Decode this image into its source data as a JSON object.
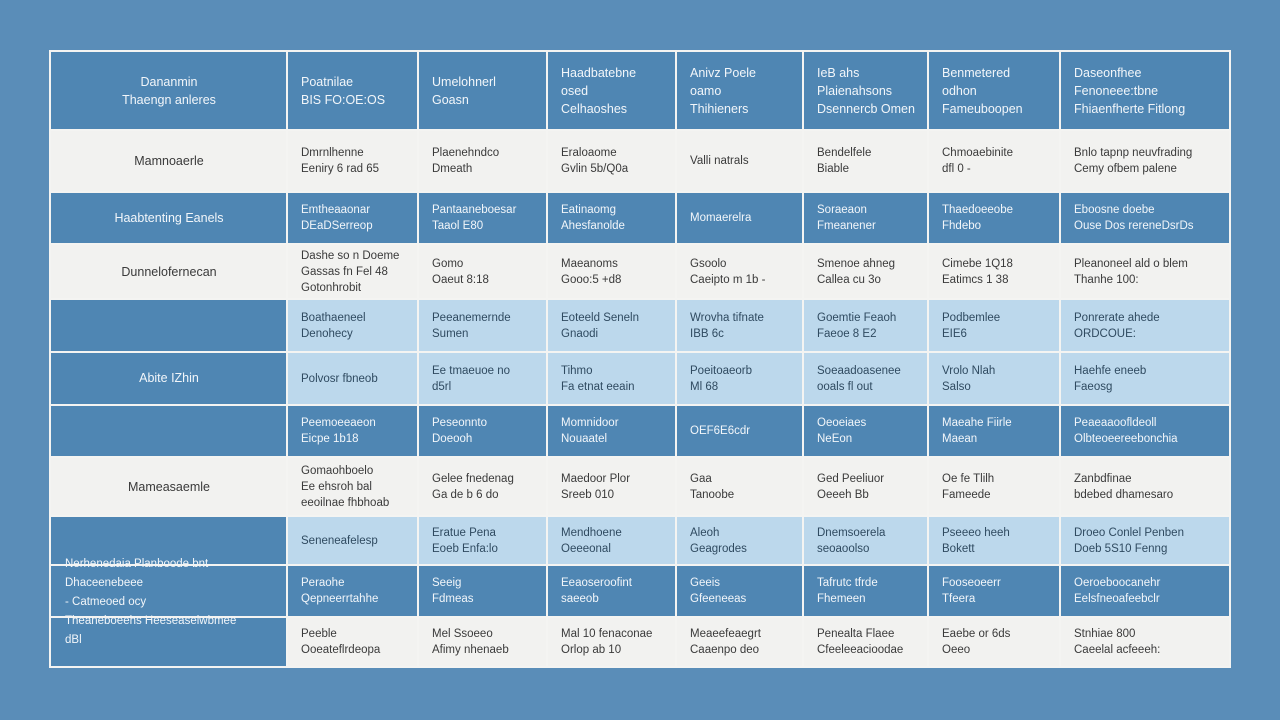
{
  "header": {
    "corner": [
      "Dananmin",
      "Thaengn anleres"
    ],
    "columns": [
      [
        "Poatnilae",
        "BIS FO:OE:OS"
      ],
      [
        "Umelohnerl",
        "Goasn"
      ],
      [
        "Haadbatebne",
        "osed",
        "Celhaoshes"
      ],
      [
        "Anivz Poele",
        "oamo",
        "Thihieners"
      ],
      [
        "IeB ahs",
        "Plaienahsons",
        "Dsennercb Omen"
      ],
      [
        "Benmetered",
        "odhon",
        "Fameuboopen"
      ],
      [
        "Daseonfhee",
        "Fenoneee:tbne",
        "Fhiaenfherte Fitlong"
      ]
    ]
  },
  "rows": {
    "r1": {
      "label": "Mamnoaerle",
      "cells": [
        [
          "Dmrnlhenne",
          "Eeniry 6 rad 65"
        ],
        [
          "Plaenehndco",
          "Dmeath"
        ],
        [
          "Eraloaome",
          "Gvlin 5b/Q0a"
        ],
        [
          "Valli natrals"
        ],
        [
          "Bendelfele",
          "Biable"
        ],
        [
          "Chmoaebinite",
          "dfl 0 -"
        ],
        [
          "Bnlo tapnp neuvfrading",
          "Cemy ofbem palene"
        ]
      ]
    },
    "r2": {
      "label": "Haabtenting Eanels",
      "cells": [
        [
          "Emtheaaonar",
          "DEaDSerreop"
        ],
        [
          "Pantaaneboesar",
          "Taaol E80"
        ],
        [
          "Eatinaomg",
          "Ahesfanolde"
        ],
        [
          "Momaerelra"
        ],
        [
          "Soraeaon",
          "Fmeanener"
        ],
        [
          "Thaedoeeobe",
          "Fhdebo"
        ],
        [
          "Eboosne doebe",
          "Ouse Dos rereneDsrDs"
        ]
      ]
    },
    "r3": {
      "label": "Dunnelofernecan",
      "cells": [
        [
          "Dashe so n Doeme",
          "Gassas fn Fel 48",
          "Gotonhrobit"
        ],
        [
          "Gomo",
          "Oaeut 8:18"
        ],
        [
          "Maeanoms",
          "Gooo:5 +d8"
        ],
        [
          "Gsoolo",
          "Caeipto m 1b -"
        ],
        [
          "Smenoe ahneg",
          "Callea cu 3o"
        ],
        [
          "Cimebe 1Q18",
          "Eatimcs 1 38"
        ],
        [
          "Pleanoneel ald o blem",
          "Thanhe 100:"
        ]
      ]
    },
    "group_a": {
      "label": "Abite IZhin",
      "sub": [
        {
          "style": "light",
          "cells": [
            [
              "Boathaeneel",
              "Denohecy"
            ],
            [
              "Peeanemernde",
              "Sumen"
            ],
            [
              "Eoteeld Seneln",
              "Gnaodi"
            ],
            [
              "Wrovha tifnate",
              "IBB 6c"
            ],
            [
              "Goemtie Feaoh",
              "Faeoe 8 E2"
            ],
            [
              "Podbemlee",
              "EIE6"
            ],
            [
              "Ponrerate ahede",
              "ORDCOUE:"
            ]
          ]
        },
        {
          "style": "light",
          "cells": [
            [
              "Polvosr fbneob"
            ],
            [
              "Ee tmaeuoe no",
              "d5rl"
            ],
            [
              "Tihmo",
              "Fa etnat eeain"
            ],
            [
              "Poeitoaeorb",
              "Ml 68"
            ],
            [
              "Soeaadoasenee",
              "ooals fl out"
            ],
            [
              "Vrolo Nlah",
              "Salso"
            ],
            [
              "Haehfe eneeb",
              "Faeosg"
            ]
          ]
        },
        {
          "style": "dark",
          "cells": [
            [
              "Peemoeeaeon",
              "Eicpe 1b18"
            ],
            [
              "Peseonnto",
              "Doeooh"
            ],
            [
              "Momnidoor",
              "Nouaatel"
            ],
            [
              "OEF6E6cdr"
            ],
            [
              "Oeoeiaes",
              "NeEon"
            ],
            [
              "Maeahe Fiirle",
              "Maean"
            ],
            [
              "Peaeaaoofldeoll",
              "Olbteoeereebonchia"
            ]
          ]
        }
      ]
    },
    "r5": {
      "label": "Mameasaemle",
      "cells": [
        [
          "Gomaohboelo",
          "Ee ehsroh bal",
          "eeoilnae fhbhoab"
        ],
        [
          "Gelee fnedenag",
          "Ga de b 6 do"
        ],
        [
          "Maedoor Plor",
          "Sreeb 010"
        ],
        [
          "Gaa",
          "Tanoobe"
        ],
        [
          "Ged Peeliuor",
          "Oeeeh Bb"
        ],
        [
          "Oe fe Tlilh",
          "Fameede"
        ],
        [
          "Zanbdfinae",
          "bdebed dhamesaro"
        ]
      ]
    },
    "group_b": {
      "lines": [
        "Nerhenedaia Planboode bnt",
        "Dhaceenebeee",
        "- Catmeoed ocy",
        "Theaneboeehs Heeseaseiwbmee",
        "dBl"
      ],
      "sub": [
        {
          "style": "light",
          "cells": [
            [
              "Seneneafelesp"
            ],
            [
              "Eratue Pena",
              "Eoeb Enfa:lo"
            ],
            [
              "Mendhoene",
              "Oeeeonal"
            ],
            [
              "Aleoh",
              "Geagrodes"
            ],
            [
              "Dnemsoerela",
              "seoaoolso"
            ],
            [
              "Pseeeo heeh",
              "Bokett"
            ],
            [
              "Droeo Conlel Penben",
              "Doeb 5S10 Fenng"
            ]
          ]
        },
        {
          "style": "dark",
          "cells": [
            [
              "Peraohe",
              "Qepneerrtahhe"
            ],
            [
              "Seeig",
              "Fdmeas"
            ],
            [
              "Eeaoseroofint",
              "saeeob"
            ],
            [
              "Geeis",
              "Gfeeneeas"
            ],
            [
              "Tafrutc tfrde",
              "Fhemeen"
            ],
            [
              "Fooseoeerr",
              "Tfeera"
            ],
            [
              "Oeroeboocanehr",
              "Eelsfneoafeebclr"
            ]
          ]
        },
        {
          "style": "white",
          "cells": [
            [
              "Peeble",
              "Ooeateflrdeopa"
            ],
            [
              "Mel Ssoeeo",
              "Afimy nhenaeb"
            ],
            [
              "Mal 10 fenaconae",
              "Orlop ab 10"
            ],
            [
              "Meaeefeaegrt",
              "Caaenpo deo"
            ],
            [
              "Penealta Flaee",
              "Cfeeleeacioodae"
            ],
            [
              "Eaebe or 6ds",
              "Oeeo"
            ],
            [
              "Stnhiae 800",
              "Caeelal acfeeeh:"
            ]
          ]
        }
      ]
    }
  },
  "colors": {
    "background": "#5a8db8",
    "dark_cell": "#4f86b3",
    "light_cell": "#bcd8ec",
    "white_cell": "#f2f2f0"
  }
}
